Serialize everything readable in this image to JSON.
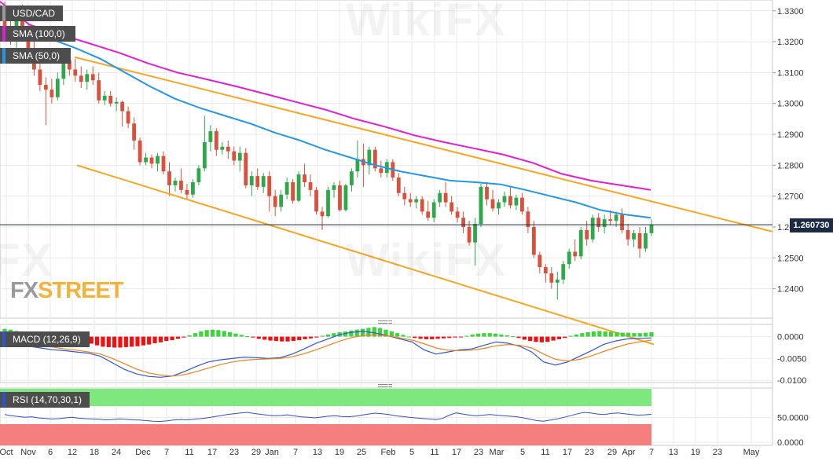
{
  "symbol": "USD/CAD",
  "legends": {
    "sma100": "SMA (100,0)",
    "sma50": "SMA (50,0)",
    "macd": "MACD (12,26,9)",
    "rsi": "RSI (14,70,30,1)"
  },
  "colors": {
    "up": "#2ea84a",
    "down": "#d9503c",
    "sma100": "#e020d0",
    "sma50": "#2496e8",
    "channel": "#f5a623",
    "macd_pos": "#3ed43e",
    "macd_neg": "#f01010",
    "macd_line": "#2d58c8",
    "signal_line": "#f08020",
    "rsi_line": "#3050c8",
    "rsi_overbought": "#7ee87e",
    "rsi_oversold": "#f57f7f"
  },
  "watermark": {
    "fx": "FX",
    "street": "STREET"
  },
  "last_price": "1.260730",
  "chart_data": {
    "type": "candlestick",
    "price_axis": {
      "ticks": [
        "1.3300",
        "1.3200",
        "1.3100",
        "1.3000",
        "1.2900",
        "1.2800",
        "1.2700",
        "1.2600",
        "1.2500",
        "1.2400"
      ],
      "ylim": [
        1.2305,
        1.3335
      ]
    },
    "macd_axis": {
      "ticks": [
        "0.0000",
        "-0.0050",
        "-0.0100"
      ],
      "ylim": [
        -0.0105,
        0.0028
      ]
    },
    "rsi_axis": {
      "ticks": [
        "50.0000",
        "0.0000"
      ],
      "ylim": [
        0,
        100
      ]
    },
    "x_ticks": [
      "Oct",
      "Nov",
      "6",
      "12",
      "18",
      "24",
      "Dec",
      "7",
      "11",
      "17",
      "23",
      "29",
      "Jan",
      "7",
      "13",
      "19",
      "25",
      "Feb",
      "5",
      "11",
      "17",
      "23",
      "Mar",
      "5",
      "11",
      "17",
      "23",
      "29",
      "Apr",
      "7",
      "13",
      "19",
      "23",
      "May"
    ],
    "candles": [
      {
        "o": 1.329,
        "h": 1.333,
        "l": 1.3205,
        "c": 1.3245
      },
      {
        "o": 1.3245,
        "h": 1.329,
        "l": 1.319,
        "c": 1.321
      },
      {
        "o": 1.321,
        "h": 1.3295,
        "l": 1.318,
        "c": 1.327
      },
      {
        "o": 1.327,
        "h": 1.332,
        "l": 1.3215,
        "c": 1.324
      },
      {
        "o": 1.324,
        "h": 1.326,
        "l": 1.316,
        "c": 1.318
      },
      {
        "o": 1.318,
        "h": 1.3215,
        "l": 1.309,
        "c": 1.311
      },
      {
        "o": 1.311,
        "h": 1.315,
        "l": 1.304,
        "c": 1.306
      },
      {
        "o": 1.306,
        "h": 1.3085,
        "l": 1.293,
        "c": 1.3045
      },
      {
        "o": 1.3045,
        "h": 1.308,
        "l": 1.3,
        "c": 1.302
      },
      {
        "o": 1.302,
        "h": 1.31,
        "l": 1.301,
        "c": 1.308
      },
      {
        "o": 1.308,
        "h": 1.316,
        "l": 1.306,
        "c": 1.314
      },
      {
        "o": 1.314,
        "h": 1.3175,
        "l": 1.309,
        "c": 1.311
      },
      {
        "o": 1.311,
        "h": 1.3145,
        "l": 1.307,
        "c": 1.309
      },
      {
        "o": 1.309,
        "h": 1.312,
        "l": 1.305,
        "c": 1.307
      },
      {
        "o": 1.307,
        "h": 1.311,
        "l": 1.3045,
        "c": 1.3095
      },
      {
        "o": 1.3095,
        "h": 1.312,
        "l": 1.306,
        "c": 1.3075
      },
      {
        "o": 1.3075,
        "h": 1.31,
        "l": 1.3,
        "c": 1.301
      },
      {
        "o": 1.301,
        "h": 1.304,
        "l": 1.2995,
        "c": 1.3025
      },
      {
        "o": 1.3025,
        "h": 1.304,
        "l": 1.299,
        "c": 1.3
      },
      {
        "o": 1.3,
        "h": 1.302,
        "l": 1.2975,
        "c": 1.3005
      },
      {
        "o": 1.3005,
        "h": 1.301,
        "l": 1.2925,
        "c": 1.2975
      },
      {
        "o": 1.2975,
        "h": 1.299,
        "l": 1.292,
        "c": 1.2935
      },
      {
        "o": 1.2935,
        "h": 1.2955,
        "l": 1.285,
        "c": 1.288
      },
      {
        "o": 1.288,
        "h": 1.289,
        "l": 1.28,
        "c": 1.281
      },
      {
        "o": 1.281,
        "h": 1.284,
        "l": 1.28,
        "c": 1.2825
      },
      {
        "o": 1.2825,
        "h": 1.2835,
        "l": 1.279,
        "c": 1.2805
      },
      {
        "o": 1.2805,
        "h": 1.284,
        "l": 1.278,
        "c": 1.283
      },
      {
        "o": 1.283,
        "h": 1.2845,
        "l": 1.277,
        "c": 1.278
      },
      {
        "o": 1.278,
        "h": 1.281,
        "l": 1.27,
        "c": 1.2735
      },
      {
        "o": 1.2735,
        "h": 1.276,
        "l": 1.2715,
        "c": 1.275
      },
      {
        "o": 1.275,
        "h": 1.279,
        "l": 1.271,
        "c": 1.272
      },
      {
        "o": 1.272,
        "h": 1.274,
        "l": 1.269,
        "c": 1.2705
      },
      {
        "o": 1.2705,
        "h": 1.2755,
        "l": 1.2695,
        "c": 1.2745
      },
      {
        "o": 1.2745,
        "h": 1.28,
        "l": 1.2735,
        "c": 1.279
      },
      {
        "o": 1.279,
        "h": 1.296,
        "l": 1.278,
        "c": 1.2875
      },
      {
        "o": 1.2875,
        "h": 1.293,
        "l": 1.2845,
        "c": 1.291
      },
      {
        "o": 1.291,
        "h": 1.292,
        "l": 1.283,
        "c": 1.285
      },
      {
        "o": 1.285,
        "h": 1.2875,
        "l": 1.2835,
        "c": 1.286
      },
      {
        "o": 1.286,
        "h": 1.288,
        "l": 1.282,
        "c": 1.2845
      },
      {
        "o": 1.2845,
        "h": 1.286,
        "l": 1.28,
        "c": 1.2815
      },
      {
        "o": 1.2815,
        "h": 1.286,
        "l": 1.278,
        "c": 1.284
      },
      {
        "o": 1.284,
        "h": 1.2855,
        "l": 1.2725,
        "c": 1.2735
      },
      {
        "o": 1.2735,
        "h": 1.278,
        "l": 1.27,
        "c": 1.2765
      },
      {
        "o": 1.2765,
        "h": 1.279,
        "l": 1.272,
        "c": 1.273
      },
      {
        "o": 1.273,
        "h": 1.2775,
        "l": 1.271,
        "c": 1.2765
      },
      {
        "o": 1.2765,
        "h": 1.278,
        "l": 1.265,
        "c": 1.27
      },
      {
        "o": 1.27,
        "h": 1.272,
        "l": 1.2635,
        "c": 1.2665
      },
      {
        "o": 1.2665,
        "h": 1.272,
        "l": 1.265,
        "c": 1.2705
      },
      {
        "o": 1.2705,
        "h": 1.276,
        "l": 1.269,
        "c": 1.2745
      },
      {
        "o": 1.2745,
        "h": 1.2755,
        "l": 1.2675,
        "c": 1.2685
      },
      {
        "o": 1.2685,
        "h": 1.278,
        "l": 1.268,
        "c": 1.277
      },
      {
        "o": 1.277,
        "h": 1.2805,
        "l": 1.273,
        "c": 1.2745
      },
      {
        "o": 1.2745,
        "h": 1.277,
        "l": 1.27,
        "c": 1.272
      },
      {
        "o": 1.272,
        "h": 1.273,
        "l": 1.264,
        "c": 1.265
      },
      {
        "o": 1.265,
        "h": 1.2665,
        "l": 1.259,
        "c": 1.2635
      },
      {
        "o": 1.2635,
        "h": 1.273,
        "l": 1.263,
        "c": 1.272
      },
      {
        "o": 1.272,
        "h": 1.2745,
        "l": 1.2695,
        "c": 1.2735
      },
      {
        "o": 1.2735,
        "h": 1.275,
        "l": 1.265,
        "c": 1.2655
      },
      {
        "o": 1.2655,
        "h": 1.274,
        "l": 1.265,
        "c": 1.2735
      },
      {
        "o": 1.2735,
        "h": 1.279,
        "l": 1.2715,
        "c": 1.278
      },
      {
        "o": 1.278,
        "h": 1.288,
        "l": 1.276,
        "c": 1.282
      },
      {
        "o": 1.282,
        "h": 1.287,
        "l": 1.273,
        "c": 1.28
      },
      {
        "o": 1.28,
        "h": 1.286,
        "l": 1.277,
        "c": 1.285
      },
      {
        "o": 1.285,
        "h": 1.286,
        "l": 1.278,
        "c": 1.279
      },
      {
        "o": 1.279,
        "h": 1.2815,
        "l": 1.276,
        "c": 1.2775
      },
      {
        "o": 1.2775,
        "h": 1.282,
        "l": 1.276,
        "c": 1.281
      },
      {
        "o": 1.281,
        "h": 1.282,
        "l": 1.275,
        "c": 1.276
      },
      {
        "o": 1.276,
        "h": 1.2775,
        "l": 1.27,
        "c": 1.271
      },
      {
        "o": 1.271,
        "h": 1.273,
        "l": 1.267,
        "c": 1.269
      },
      {
        "o": 1.269,
        "h": 1.271,
        "l": 1.2665,
        "c": 1.268
      },
      {
        "o": 1.268,
        "h": 1.27,
        "l": 1.266,
        "c": 1.269
      },
      {
        "o": 1.269,
        "h": 1.27,
        "l": 1.264,
        "c": 1.265
      },
      {
        "o": 1.265,
        "h": 1.2685,
        "l": 1.262,
        "c": 1.263
      },
      {
        "o": 1.263,
        "h": 1.269,
        "l": 1.2615,
        "c": 1.268
      },
      {
        "o": 1.268,
        "h": 1.272,
        "l": 1.2665,
        "c": 1.271
      },
      {
        "o": 1.271,
        "h": 1.2745,
        "l": 1.2665,
        "c": 1.268
      },
      {
        "o": 1.268,
        "h": 1.27,
        "l": 1.264,
        "c": 1.265
      },
      {
        "o": 1.265,
        "h": 1.2665,
        "l": 1.2615,
        "c": 1.263
      },
      {
        "o": 1.263,
        "h": 1.265,
        "l": 1.258,
        "c": 1.26
      },
      {
        "o": 1.26,
        "h": 1.262,
        "l": 1.254,
        "c": 1.255
      },
      {
        "o": 1.255,
        "h": 1.263,
        "l": 1.2475,
        "c": 1.261
      },
      {
        "o": 1.261,
        "h": 1.274,
        "l": 1.26,
        "c": 1.273
      },
      {
        "o": 1.273,
        "h": 1.2745,
        "l": 1.267,
        "c": 1.269
      },
      {
        "o": 1.269,
        "h": 1.272,
        "l": 1.265,
        "c": 1.266
      },
      {
        "o": 1.266,
        "h": 1.269,
        "l": 1.264,
        "c": 1.268
      },
      {
        "o": 1.268,
        "h": 1.2715,
        "l": 1.2665,
        "c": 1.27
      },
      {
        "o": 1.27,
        "h": 1.273,
        "l": 1.266,
        "c": 1.267
      },
      {
        "o": 1.267,
        "h": 1.2705,
        "l": 1.2655,
        "c": 1.2695
      },
      {
        "o": 1.2695,
        "h": 1.271,
        "l": 1.264,
        "c": 1.265
      },
      {
        "o": 1.265,
        "h": 1.2665,
        "l": 1.258,
        "c": 1.26
      },
      {
        "o": 1.26,
        "h": 1.262,
        "l": 1.25,
        "c": 1.251
      },
      {
        "o": 1.251,
        "h": 1.252,
        "l": 1.245,
        "c": 1.247
      },
      {
        "o": 1.247,
        "h": 1.248,
        "l": 1.242,
        "c": 1.245
      },
      {
        "o": 1.245,
        "h": 1.247,
        "l": 1.24,
        "c": 1.242
      },
      {
        "o": 1.242,
        "h": 1.2455,
        "l": 1.2365,
        "c": 1.243
      },
      {
        "o": 1.243,
        "h": 1.249,
        "l": 1.2415,
        "c": 1.248
      },
      {
        "o": 1.248,
        "h": 1.253,
        "l": 1.2465,
        "c": 1.252
      },
      {
        "o": 1.252,
        "h": 1.256,
        "l": 1.249,
        "c": 1.2505
      },
      {
        "o": 1.2505,
        "h": 1.26,
        "l": 1.2495,
        "c": 1.259
      },
      {
        "o": 1.259,
        "h": 1.262,
        "l": 1.254,
        "c": 1.256
      },
      {
        "o": 1.256,
        "h": 1.264,
        "l": 1.255,
        "c": 1.263
      },
      {
        "o": 1.263,
        "h": 1.2645,
        "l": 1.2585,
        "c": 1.26
      },
      {
        "o": 1.26,
        "h": 1.264,
        "l": 1.258,
        "c": 1.2625
      },
      {
        "o": 1.2625,
        "h": 1.2655,
        "l": 1.2605,
        "c": 1.262
      },
      {
        "o": 1.262,
        "h": 1.265,
        "l": 1.26,
        "c": 1.264
      },
      {
        "o": 1.264,
        "h": 1.266,
        "l": 1.258,
        "c": 1.259
      },
      {
        "o": 1.259,
        "h": 1.261,
        "l": 1.254,
        "c": 1.256
      },
      {
        "o": 1.256,
        "h": 1.259,
        "l": 1.2535,
        "c": 1.258
      },
      {
        "o": 1.258,
        "h": 1.26,
        "l": 1.25,
        "c": 1.253
      },
      {
        "o": 1.253,
        "h": 1.26,
        "l": 1.252,
        "c": 1.258
      },
      {
        "o": 1.258,
        "h": 1.2625,
        "l": 1.257,
        "c": 1.2607
      }
    ],
    "sma100": [
      1.333,
      1.3255,
      1.3225,
      1.3195,
      1.3165,
      1.313,
      1.31,
      1.3078,
      1.3055,
      1.303,
      1.3005,
      1.298,
      1.295,
      1.2925,
      1.2897,
      1.2875,
      1.2855,
      1.2835,
      1.2808,
      1.2772,
      1.275,
      1.2735,
      1.272
    ],
    "sma50": [
      1.3245,
      1.3225,
      1.321,
      1.318,
      1.3145,
      1.31,
      1.3055,
      1.3015,
      1.2985,
      1.296,
      1.2935,
      1.2905,
      1.288,
      1.285,
      1.2825,
      1.28,
      1.278,
      1.2765,
      1.275,
      1.2745,
      1.2738,
      1.272,
      1.27,
      1.268,
      1.2655,
      1.264,
      1.263
    ],
    "channel_upper": [
      1.315,
      1.2585
    ],
    "channel_lower": [
      1.28,
      1.222
    ],
    "macd_hist": [
      0.0018,
      0.0016,
      0.0013,
      0.001,
      0.0007,
      0.0004,
      0.0002,
      0.0,
      -0.0002,
      -0.0003,
      -0.0004,
      -0.0005,
      -0.0007,
      -0.001,
      -0.0013,
      -0.0016,
      -0.002,
      -0.0023,
      -0.0024,
      -0.0025,
      -0.0025,
      -0.0024,
      -0.0023,
      -0.0022,
      -0.002,
      -0.0018,
      -0.0015,
      -0.0013,
      -0.001,
      -0.0008,
      -0.0005,
      -0.0002,
      0.0003,
      0.0008,
      0.0012,
      0.0015,
      0.0016,
      0.0015,
      0.0013,
      0.001,
      0.0007,
      0.0004,
      0.0001,
      -0.0002,
      -0.0005,
      -0.0007,
      -0.0009,
      -0.001,
      -0.0011,
      -0.0011,
      -0.001,
      -0.0008,
      -0.0006,
      -0.0004,
      -0.0002,
      0.0002,
      0.0005,
      0.0008,
      0.001,
      0.0012,
      0.0014,
      0.0016,
      0.0018,
      0.002,
      0.0022,
      0.002,
      0.0016,
      0.0012,
      0.0008,
      0.0004,
      0.0,
      -0.0003,
      -0.0005,
      -0.0006,
      -0.0006,
      -0.0005,
      -0.0004,
      -0.0003,
      -0.0002,
      -0.0001,
      0.0002,
      0.0005,
      0.0007,
      0.0008,
      0.0008,
      0.0007,
      0.0005,
      0.0003,
      0.0001,
      -0.0003,
      -0.0007,
      -0.001,
      -0.0012,
      -0.0013,
      -0.0012,
      -0.0009,
      -0.0006,
      -0.0003,
      0.0002,
      0.0005,
      0.0008,
      0.001,
      0.0012,
      0.0013,
      0.0012,
      0.0011,
      0.001,
      0.0009,
      0.0009,
      0.0008,
      0.0008,
      0.0009,
      0.001
    ],
    "macd_line": [
      -0.001,
      -0.0018,
      -0.0022,
      -0.0026,
      -0.003,
      -0.0032,
      -0.0035,
      -0.0038,
      -0.0045,
      -0.006,
      -0.0075,
      -0.0085,
      -0.0091,
      -0.0093,
      -0.009,
      -0.008,
      -0.0068,
      -0.0058,
      -0.0053,
      -0.005,
      -0.0047,
      -0.0048,
      -0.005,
      -0.0048,
      -0.004,
      -0.0028,
      -0.0015,
      -0.0005,
      0.0005,
      0.001,
      0.0012,
      0.0008,
      0.0002,
      -0.0005,
      -0.0012,
      -0.003,
      -0.004,
      -0.0035,
      -0.003,
      -0.0028,
      -0.002,
      -0.0012,
      -0.0015,
      -0.0022,
      -0.0035,
      -0.0058,
      -0.0065,
      -0.0058,
      -0.0045,
      -0.0032,
      -0.0018,
      -0.001,
      -0.0005,
      -0.0004,
      -0.0003
    ],
    "signal_line": [
      -0.0005,
      -0.001,
      -0.0015,
      -0.002,
      -0.0024,
      -0.0028,
      -0.0031,
      -0.0035,
      -0.004,
      -0.005,
      -0.0062,
      -0.0074,
      -0.0083,
      -0.0088,
      -0.009,
      -0.0087,
      -0.008,
      -0.0072,
      -0.0064,
      -0.0058,
      -0.0054,
      -0.0052,
      -0.0051,
      -0.005,
      -0.0046,
      -0.0039,
      -0.003,
      -0.002,
      -0.001,
      -0.0002,
      0.0003,
      0.0004,
      0.0002,
      -0.0003,
      -0.0008,
      -0.0016,
      -0.0026,
      -0.0031,
      -0.0032,
      -0.0031,
      -0.0027,
      -0.0021,
      -0.0018,
      -0.002,
      -0.0026,
      -0.004,
      -0.0052,
      -0.0056,
      -0.0052,
      -0.0044,
      -0.0034,
      -0.0025,
      -0.0017,
      -0.0012,
      -0.0008
    ],
    "rsi": [
      52,
      48,
      45,
      42,
      44,
      40,
      38,
      36,
      37,
      40,
      42,
      39,
      37,
      36,
      35,
      33,
      34,
      36,
      35,
      33,
      32,
      30,
      28,
      27,
      29,
      32,
      34,
      33,
      35,
      37,
      40,
      44,
      48,
      52,
      55,
      58,
      60,
      56,
      53,
      50,
      48,
      49,
      51,
      47,
      44,
      42,
      40,
      43,
      46,
      48,
      45,
      44,
      46,
      50,
      54,
      57,
      55,
      52,
      48,
      45,
      42,
      40,
      38,
      36,
      34,
      38,
      50,
      58,
      54,
      50,
      48,
      50,
      52,
      50,
      48,
      46,
      44,
      40,
      35,
      30,
      28,
      32,
      36,
      42,
      48,
      55,
      60,
      58,
      54,
      52,
      56,
      58,
      55,
      52,
      50,
      51,
      53
    ]
  }
}
